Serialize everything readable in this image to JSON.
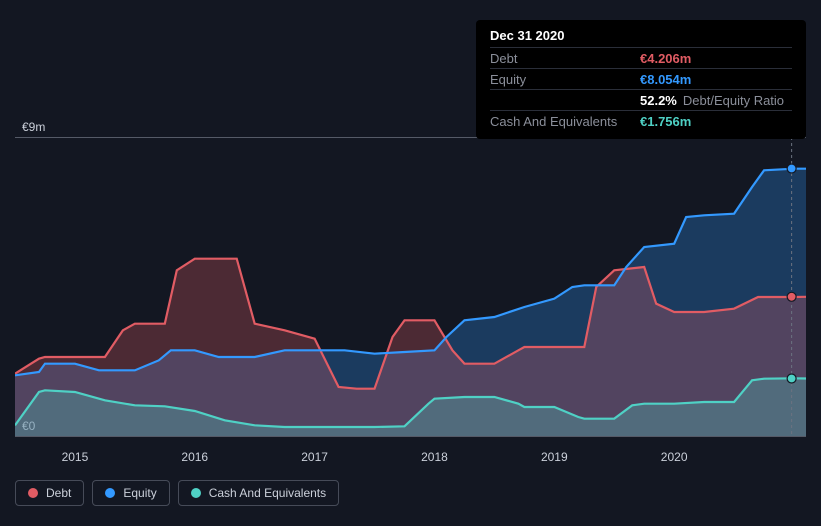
{
  "chart": {
    "type": "area",
    "background_color": "#131722",
    "grid_color": "#555a67",
    "y_axis": {
      "ticks": [
        {
          "v": 0,
          "label": "€0"
        },
        {
          "v": 9,
          "label": "€9m"
        }
      ],
      "min": 0,
      "max": 9
    },
    "x_axis": {
      "min": 2014.5,
      "max": 2021.1,
      "ticks": [
        2015,
        2016,
        2017,
        2018,
        2019,
        2020
      ]
    },
    "crosshair_x": 2020.98,
    "end_markers": [
      {
        "series": "equity",
        "y": 8.054
      },
      {
        "series": "debt",
        "y": 4.206
      },
      {
        "series": "cash",
        "y": 1.756
      }
    ],
    "series": [
      {
        "key": "equity",
        "label": "Equity",
        "color": "#3399ff",
        "points": [
          [
            2014.5,
            1.85
          ],
          [
            2014.7,
            1.95
          ],
          [
            2014.75,
            2.2
          ],
          [
            2015.0,
            2.2
          ],
          [
            2015.2,
            2.0
          ],
          [
            2015.5,
            2.0
          ],
          [
            2015.7,
            2.3
          ],
          [
            2015.8,
            2.6
          ],
          [
            2016.0,
            2.6
          ],
          [
            2016.2,
            2.4
          ],
          [
            2016.5,
            2.4
          ],
          [
            2016.75,
            2.6
          ],
          [
            2017.0,
            2.6
          ],
          [
            2017.25,
            2.6
          ],
          [
            2017.5,
            2.5
          ],
          [
            2017.75,
            2.55
          ],
          [
            2018.0,
            2.6
          ],
          [
            2018.1,
            3.0
          ],
          [
            2018.25,
            3.5
          ],
          [
            2018.5,
            3.6
          ],
          [
            2018.75,
            3.9
          ],
          [
            2019.0,
            4.15
          ],
          [
            2019.15,
            4.5
          ],
          [
            2019.25,
            4.55
          ],
          [
            2019.5,
            4.55
          ],
          [
            2019.6,
            5.1
          ],
          [
            2019.75,
            5.7
          ],
          [
            2020.0,
            5.8
          ],
          [
            2020.1,
            6.6
          ],
          [
            2020.25,
            6.65
          ],
          [
            2020.5,
            6.7
          ],
          [
            2020.65,
            7.5
          ],
          [
            2020.75,
            8.0
          ],
          [
            2021.0,
            8.05
          ],
          [
            2021.1,
            8.05
          ]
        ]
      },
      {
        "key": "debt",
        "label": "Debt",
        "color": "#e15c64",
        "points": [
          [
            2014.5,
            1.9
          ],
          [
            2014.7,
            2.35
          ],
          [
            2014.75,
            2.4
          ],
          [
            2015.0,
            2.4
          ],
          [
            2015.25,
            2.4
          ],
          [
            2015.4,
            3.2
          ],
          [
            2015.5,
            3.4
          ],
          [
            2015.75,
            3.4
          ],
          [
            2015.85,
            5.0
          ],
          [
            2016.0,
            5.35
          ],
          [
            2016.25,
            5.35
          ],
          [
            2016.35,
            5.35
          ],
          [
            2016.5,
            3.4
          ],
          [
            2016.75,
            3.2
          ],
          [
            2017.0,
            2.95
          ],
          [
            2017.2,
            1.5
          ],
          [
            2017.35,
            1.45
          ],
          [
            2017.5,
            1.45
          ],
          [
            2017.65,
            3.0
          ],
          [
            2017.75,
            3.5
          ],
          [
            2018.0,
            3.5
          ],
          [
            2018.15,
            2.6
          ],
          [
            2018.25,
            2.2
          ],
          [
            2018.5,
            2.2
          ],
          [
            2018.7,
            2.6
          ],
          [
            2018.75,
            2.7
          ],
          [
            2019.0,
            2.7
          ],
          [
            2019.25,
            2.7
          ],
          [
            2019.35,
            4.5
          ],
          [
            2019.5,
            5.0
          ],
          [
            2019.75,
            5.1
          ],
          [
            2019.85,
            4.0
          ],
          [
            2020.0,
            3.75
          ],
          [
            2020.25,
            3.75
          ],
          [
            2020.5,
            3.85
          ],
          [
            2020.7,
            4.2
          ],
          [
            2020.75,
            4.2
          ],
          [
            2021.0,
            4.2
          ],
          [
            2021.1,
            4.206
          ]
        ]
      },
      {
        "key": "cash",
        "label": "Cash And Equivalents",
        "color": "#4fd1c5",
        "points": [
          [
            2014.5,
            0.35
          ],
          [
            2014.7,
            1.35
          ],
          [
            2014.75,
            1.4
          ],
          [
            2015.0,
            1.35
          ],
          [
            2015.25,
            1.1
          ],
          [
            2015.5,
            0.95
          ],
          [
            2015.75,
            0.92
          ],
          [
            2016.0,
            0.78
          ],
          [
            2016.25,
            0.5
          ],
          [
            2016.5,
            0.35
          ],
          [
            2016.75,
            0.3
          ],
          [
            2017.0,
            0.3
          ],
          [
            2017.25,
            0.3
          ],
          [
            2017.5,
            0.3
          ],
          [
            2017.75,
            0.32
          ],
          [
            2017.95,
            1.0
          ],
          [
            2018.0,
            1.15
          ],
          [
            2018.25,
            1.2
          ],
          [
            2018.5,
            1.2
          ],
          [
            2018.7,
            1.0
          ],
          [
            2018.75,
            0.9
          ],
          [
            2019.0,
            0.9
          ],
          [
            2019.2,
            0.6
          ],
          [
            2019.25,
            0.55
          ],
          [
            2019.5,
            0.55
          ],
          [
            2019.65,
            0.95
          ],
          [
            2019.75,
            1.0
          ],
          [
            2020.0,
            1.0
          ],
          [
            2020.25,
            1.05
          ],
          [
            2020.5,
            1.05
          ],
          [
            2020.65,
            1.7
          ],
          [
            2020.75,
            1.75
          ],
          [
            2021.0,
            1.76
          ],
          [
            2021.1,
            1.756
          ]
        ]
      }
    ]
  },
  "tooltip": {
    "date": "Dec 31 2020",
    "rows": [
      {
        "label": "Debt",
        "value": "€4.206m",
        "colorClass": "c-debt"
      },
      {
        "label": "Equity",
        "value": "€8.054m",
        "colorClass": "c-equity"
      }
    ],
    "ratio": {
      "value": "52.2%",
      "label": "Debt/Equity Ratio"
    },
    "cash_row": {
      "label": "Cash And Equivalents",
      "value": "€1.756m",
      "colorClass": "c-cash"
    }
  },
  "legend": [
    {
      "label": "Debt",
      "color": "#e15c64"
    },
    {
      "label": "Equity",
      "color": "#3399ff"
    },
    {
      "label": "Cash And Equivalents",
      "color": "#4fd1c5"
    }
  ]
}
